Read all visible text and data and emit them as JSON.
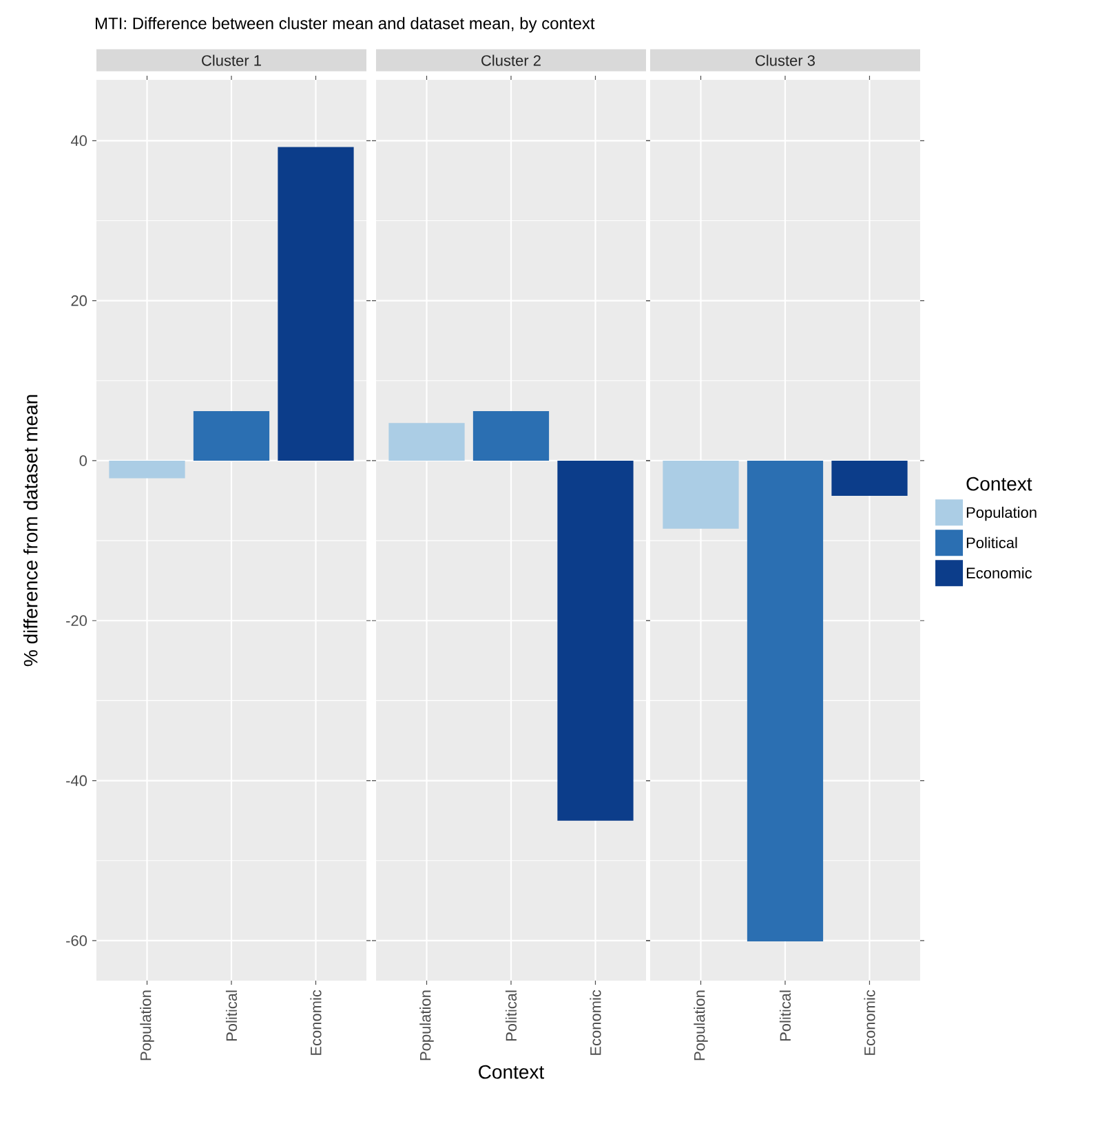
{
  "chart_data": [
    {
      "type": "bar",
      "title": "MTI: Difference between cluster mean and dataset mean, by context",
      "subtitle": "Cluster 1",
      "ylabel": "% difference from dataset mean",
      "categories": [
        "Population",
        "Political",
        "Economic"
      ],
      "series": [
        {
          "color": "#abcde5",
          "values": [
            -2.2,
            null,
            null
          ]
        },
        {
          "color": "#2b6fb2",
          "values": [
            null,
            6.2,
            null
          ]
        },
        {
          "color": "#0c3d8a",
          "values": [
            null,
            null,
            39.2
          ]
        }
      ],
      "ylim": [
        -65,
        47.6
      ],
      "yticks": [
        -60,
        -40,
        -20,
        0,
        20,
        40
      ],
      "grid": true
    },
    {
      "type": "bar",
      "subtitle": "Cluster 2",
      "xlabel": "Context",
      "categories": [
        "Population",
        "Political",
        "Economic"
      ],
      "series": [
        {
          "color": "#abcde5",
          "values": [
            4.7,
            null,
            null
          ]
        },
        {
          "color": "#2b6fb2",
          "values": [
            null,
            6.2,
            null
          ]
        },
        {
          "color": "#0c3d8a",
          "values": [
            null,
            null,
            -45.0
          ]
        }
      ],
      "ylim": [
        -65,
        47.6
      ],
      "yticks": [
        -60,
        -40,
        -20,
        0,
        20,
        40
      ],
      "grid": true,
      "tick_labels": "x"
    },
    {
      "type": "bar",
      "subtitle": "Cluster 3",
      "legend_title": "Context",
      "legend": "right",
      "categories": [
        "Population",
        "Political",
        "Economic"
      ],
      "series": [
        {
          "name": "Population",
          "color": "#abcde5",
          "values": [
            -8.5,
            null,
            null
          ]
        },
        {
          "name": "Political",
          "color": "#2b6fb2",
          "values": [
            null,
            -60.1,
            null
          ]
        },
        {
          "name": "Economic",
          "color": "#0c3d8a",
          "values": [
            null,
            null,
            -4.4
          ]
        }
      ],
      "ylim": [
        -65,
        47.6
      ],
      "yticks": [
        -60,
        -40,
        -20,
        0,
        20,
        40
      ],
      "grid": true,
      "tick_labels": "x"
    }
  ]
}
